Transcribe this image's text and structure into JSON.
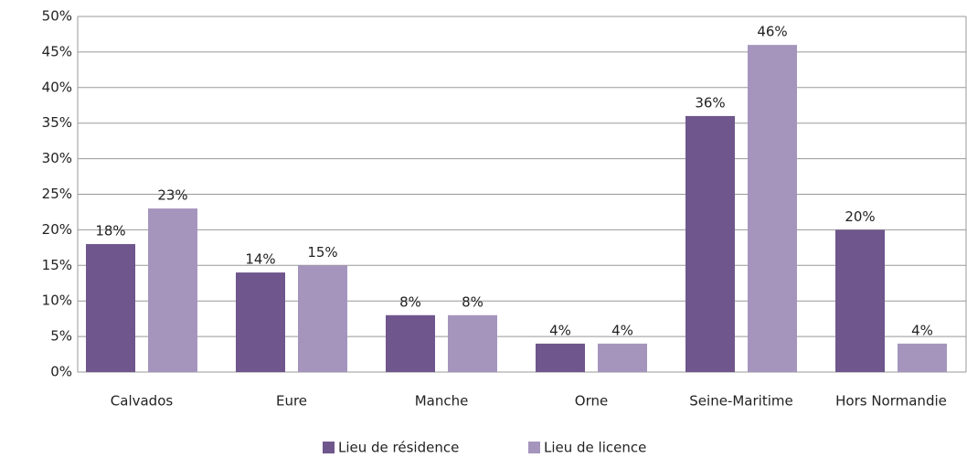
{
  "chart_data": {
    "type": "bar",
    "categories": [
      "Calvados",
      "Eure",
      "Manche",
      "Orne",
      "Seine-Maritime",
      "Hors Normandie"
    ],
    "series": [
      {
        "name": "Lieu de résidence",
        "color": "#6f568c",
        "values": [
          18,
          14,
          8,
          4,
          36,
          20
        ],
        "value_labels": [
          "18%",
          "14%",
          "8%",
          "4%",
          "36%",
          "20%"
        ]
      },
      {
        "name": "Lieu de licence",
        "color": "#a595bd",
        "values": [
          23,
          15,
          8,
          4,
          46,
          4
        ],
        "value_labels": [
          "23%",
          "15%",
          "8%",
          "4%",
          "46%",
          "4%"
        ]
      }
    ],
    "ylim": [
      0,
      50
    ],
    "yticks": [
      {
        "value": 0,
        "label": "0%"
      },
      {
        "value": 5,
        "label": "5%"
      },
      {
        "value": 10,
        "label": "10%"
      },
      {
        "value": 15,
        "label": "15%"
      },
      {
        "value": 20,
        "label": "20%"
      },
      {
        "value": 25,
        "label": "25%"
      },
      {
        "value": 30,
        "label": "30%"
      },
      {
        "value": 35,
        "label": "35%"
      },
      {
        "value": 40,
        "label": "40%"
      },
      {
        "value": 45,
        "label": "45%"
      },
      {
        "value": 50,
        "label": "50%"
      }
    ],
    "grid": true,
    "legend": "bottom"
  }
}
